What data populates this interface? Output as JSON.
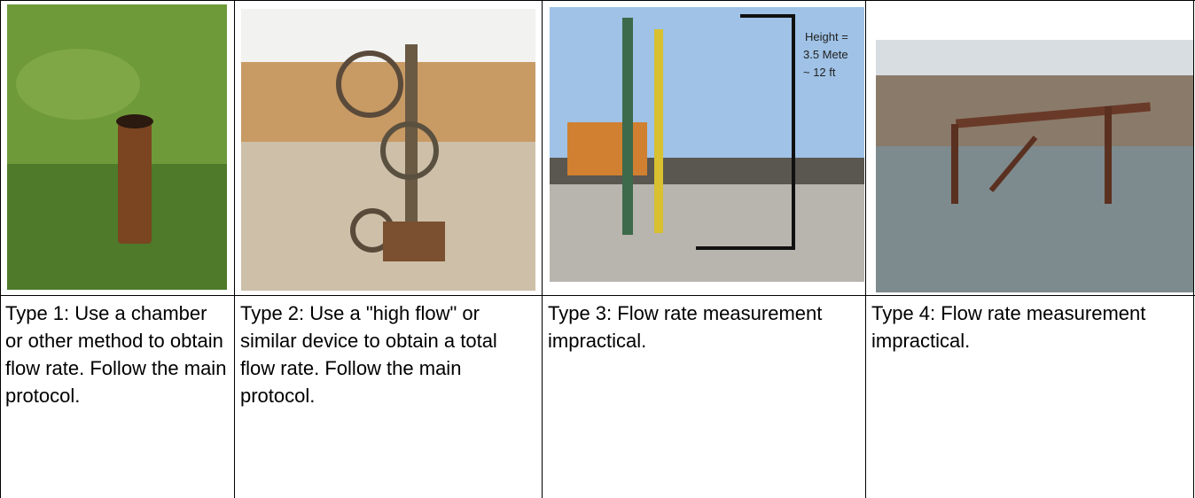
{
  "table": {
    "captions": [
      "Type 1: Use a chamber or other method to obtain flow rate. Follow the main protocol.",
      "Type 2: Use a \"high flow\" or similar device to obtain a total flow rate. Follow the main protocol.",
      "Type 3: Flow rate measurement impractical.",
      "Type 4: Flow rate measurement impractical."
    ],
    "annotation": [
      "Height =",
      "3.5 Mete",
      "~ 12 ft"
    ]
  }
}
